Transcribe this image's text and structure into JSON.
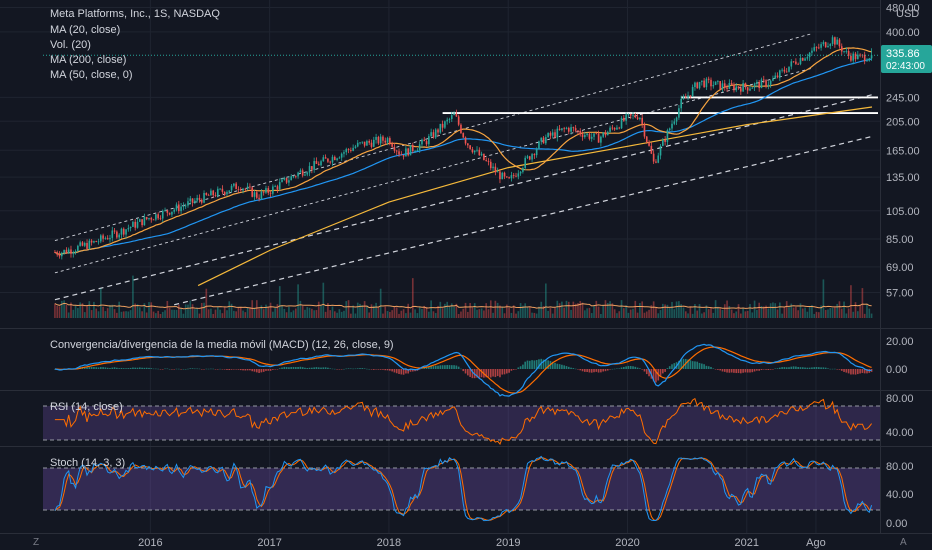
{
  "colors": {
    "background": "#131722",
    "grid": "#1f2430",
    "text": "#d1d4dc",
    "axis_text": "#b2b5be",
    "up": "#26a69a",
    "down": "#ef5350",
    "ma20": "#f7a440",
    "ma50": "#2196f3",
    "ma200": "#f5b93b",
    "volume_ma": "#f0a060",
    "macd_line": "#2196f3",
    "signal_line": "#ff6d00",
    "rsi_line": "#ff6d00",
    "rsi_band": "#7e57c2",
    "stoch_k": "#2196f3",
    "stoch_d": "#ff6d00",
    "price_label": "#26a69a",
    "horizontal_levels": "#ffffff"
  },
  "legend": {
    "title": "Meta Platforms, Inc., 1S, NASDAQ",
    "line1": "MA (20, close)",
    "line2": "Vol. (20)",
    "line3": "MA (200, close)",
    "line4": "MA (50, close, 0)"
  },
  "price_axis": {
    "currency": "USD",
    "ticks": [
      "480.00",
      "400.00",
      "245.00",
      "205.00",
      "165.00",
      "135.00",
      "105.00",
      "85.00",
      "69.00",
      "57.00"
    ]
  },
  "last_price": {
    "value": "335.86",
    "countdown": "02:43:00"
  },
  "panels": {
    "macd": {
      "label": "Convergencia/divergencia de la media móvil (MACD) (12, 26, close, 9)",
      "ticks": [
        "20.00",
        "0.00"
      ]
    },
    "rsi": {
      "label": "RSI (14, close)",
      "ticks": [
        "80.00",
        "40.00"
      ]
    },
    "stoch": {
      "label": "Stoch (14, 3, 3)",
      "ticks": [
        "80.00",
        "40.00",
        "0.00"
      ]
    }
  },
  "time_axis": {
    "labels": [
      "2016",
      "2017",
      "2018",
      "2019",
      "2020",
      "2021",
      "Ago"
    ]
  },
  "corner": {
    "left": "Z",
    "right": "A"
  },
  "chart_data": {
    "type": "candlestick",
    "title": "Meta Platforms, Inc., 1S, NASDAQ",
    "price_scale": "log",
    "ylim": [
      50,
      500
    ],
    "y_ticks": [
      480,
      400,
      245,
      205,
      165,
      135,
      105,
      85,
      69,
      57
    ],
    "keypoints": [
      {
        "x": 2015.25,
        "y": 77
      },
      {
        "x": 2015.5,
        "y": 82
      },
      {
        "x": 2015.75,
        "y": 90
      },
      {
        "x": 2016.0,
        "y": 100
      },
      {
        "x": 2016.25,
        "y": 108
      },
      {
        "x": 2016.5,
        "y": 118
      },
      {
        "x": 2016.75,
        "y": 127
      },
      {
        "x": 2016.9,
        "y": 117
      },
      {
        "x": 2017.0,
        "y": 122
      },
      {
        "x": 2017.25,
        "y": 140
      },
      {
        "x": 2017.5,
        "y": 155
      },
      {
        "x": 2017.75,
        "y": 172
      },
      {
        "x": 2018.0,
        "y": 180
      },
      {
        "x": 2018.1,
        "y": 160
      },
      {
        "x": 2018.3,
        "y": 175
      },
      {
        "x": 2018.55,
        "y": 215
      },
      {
        "x": 2018.65,
        "y": 175
      },
      {
        "x": 2018.9,
        "y": 140
      },
      {
        "x": 2019.0,
        "y": 130
      },
      {
        "x": 2019.3,
        "y": 180
      },
      {
        "x": 2019.5,
        "y": 195
      },
      {
        "x": 2019.75,
        "y": 180
      },
      {
        "x": 2020.0,
        "y": 210
      },
      {
        "x": 2020.1,
        "y": 215
      },
      {
        "x": 2020.22,
        "y": 150
      },
      {
        "x": 2020.45,
        "y": 235
      },
      {
        "x": 2020.6,
        "y": 275
      },
      {
        "x": 2020.85,
        "y": 265
      },
      {
        "x": 2021.0,
        "y": 265
      },
      {
        "x": 2021.2,
        "y": 275
      },
      {
        "x": 2021.4,
        "y": 320
      },
      {
        "x": 2021.6,
        "y": 355
      },
      {
        "x": 2021.72,
        "y": 380
      },
      {
        "x": 2021.85,
        "y": 335
      },
      {
        "x": 2021.95,
        "y": 330
      },
      {
        "x": 2022.05,
        "y": 336
      }
    ],
    "last_value": 335.86,
    "horizontal_levels": [
      245,
      218
    ],
    "ma200_keypoints": [
      {
        "x": 2016.4,
        "y": 60
      },
      {
        "x": 2017.0,
        "y": 78
      },
      {
        "x": 2018.0,
        "y": 112
      },
      {
        "x": 2019.0,
        "y": 145
      },
      {
        "x": 2020.0,
        "y": 170
      },
      {
        "x": 2021.0,
        "y": 200
      },
      {
        "x": 2022.05,
        "y": 228
      }
    ],
    "panels": [
      "MACD (12, 26, close, 9)",
      "RSI (14, close)",
      "Stoch (14, 3, 3)"
    ],
    "x_labels": [
      "2016",
      "2017",
      "2018",
      "2019",
      "2020",
      "2021",
      "Ago"
    ],
    "x_label_positions": [
      2016.0,
      2017.0,
      2018.0,
      2019.0,
      2020.0,
      2021.0,
      2021.58
    ]
  }
}
